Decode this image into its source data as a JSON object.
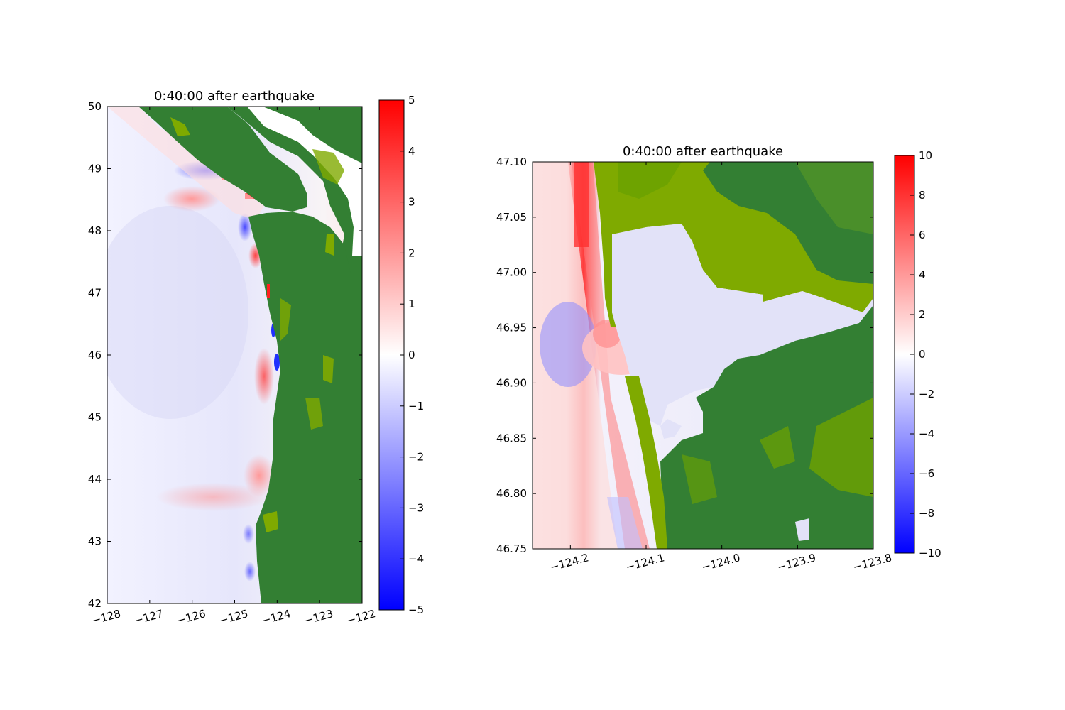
{
  "chart_data": [
    {
      "type": "heatmap",
      "title": "0:40:00 after earthquake",
      "xlim": [
        -128,
        -122
      ],
      "ylim": [
        42,
        50
      ],
      "x_ticks": [
        -128,
        -127,
        -126,
        -125,
        -124,
        -123,
        -122
      ],
      "x_tick_labels": [
        "−128",
        "−127",
        "−126",
        "−125",
        "−124",
        "−123",
        "−122"
      ],
      "y_ticks": [
        42,
        43,
        44,
        45,
        46,
        47,
        48,
        49,
        50
      ],
      "y_tick_labels": [
        "42",
        "43",
        "44",
        "45",
        "46",
        "47",
        "48",
        "49",
        "50"
      ],
      "colorbar": {
        "range": [
          -5,
          5
        ],
        "ticks": [
          -5,
          -4,
          -3,
          -2,
          -1,
          0,
          1,
          2,
          3,
          4,
          5
        ],
        "tick_labels": [
          "−5",
          "−4",
          "−3",
          "−2",
          "−1",
          "0",
          "1",
          "2",
          "3",
          "4",
          "5"
        ],
        "colormap": "bwr"
      },
      "land_colors": [
        "#337f33",
        "#7faa00"
      ]
    },
    {
      "type": "heatmap",
      "title": "0:40:00 after earthquake",
      "xlim": [
        -124.25,
        -123.8
      ],
      "ylim": [
        46.75,
        47.1
      ],
      "x_ticks": [
        -124.2,
        -124.1,
        -124.0,
        -123.9,
        -123.8
      ],
      "x_tick_labels": [
        "−124.2",
        "−124.1",
        "−124.0",
        "−123.9",
        "−123.8"
      ],
      "y_ticks": [
        46.75,
        46.8,
        46.85,
        46.9,
        46.95,
        47.0,
        47.05,
        47.1
      ],
      "y_tick_labels": [
        "46.75",
        "46.80",
        "46.85",
        "46.90",
        "46.95",
        "47.00",
        "47.05",
        "47.10"
      ],
      "colorbar": {
        "range": [
          -10,
          10
        ],
        "ticks": [
          -10,
          -8,
          -6,
          -4,
          -2,
          0,
          2,
          4,
          6,
          8,
          10
        ],
        "tick_labels": [
          "−10",
          "−8",
          "−6",
          "−4",
          "−2",
          "0",
          "2",
          "4",
          "6",
          "8",
          "10"
        ],
        "colormap": "bwr"
      },
      "land_colors": [
        "#337f33",
        "#7faa00"
      ]
    }
  ]
}
